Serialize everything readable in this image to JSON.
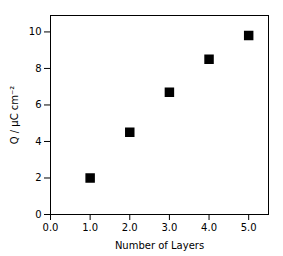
{
  "chart_data": {
    "type": "scatter",
    "x": [
      1,
      2,
      3,
      4,
      5
    ],
    "y": [
      2.0,
      4.5,
      6.7,
      8.5,
      9.8
    ],
    "xlabel": "Number of Layers",
    "ylabel": "Q / μC cm⁻²",
    "xlim": [
      0,
      5.5
    ],
    "ylim": [
      0,
      10.9
    ],
    "xticks": [
      0,
      1,
      2,
      3,
      4,
      5
    ],
    "yticks": [
      0,
      2,
      4,
      6,
      8,
      10
    ],
    "marker": "square",
    "color": "black",
    "grid": false
  }
}
